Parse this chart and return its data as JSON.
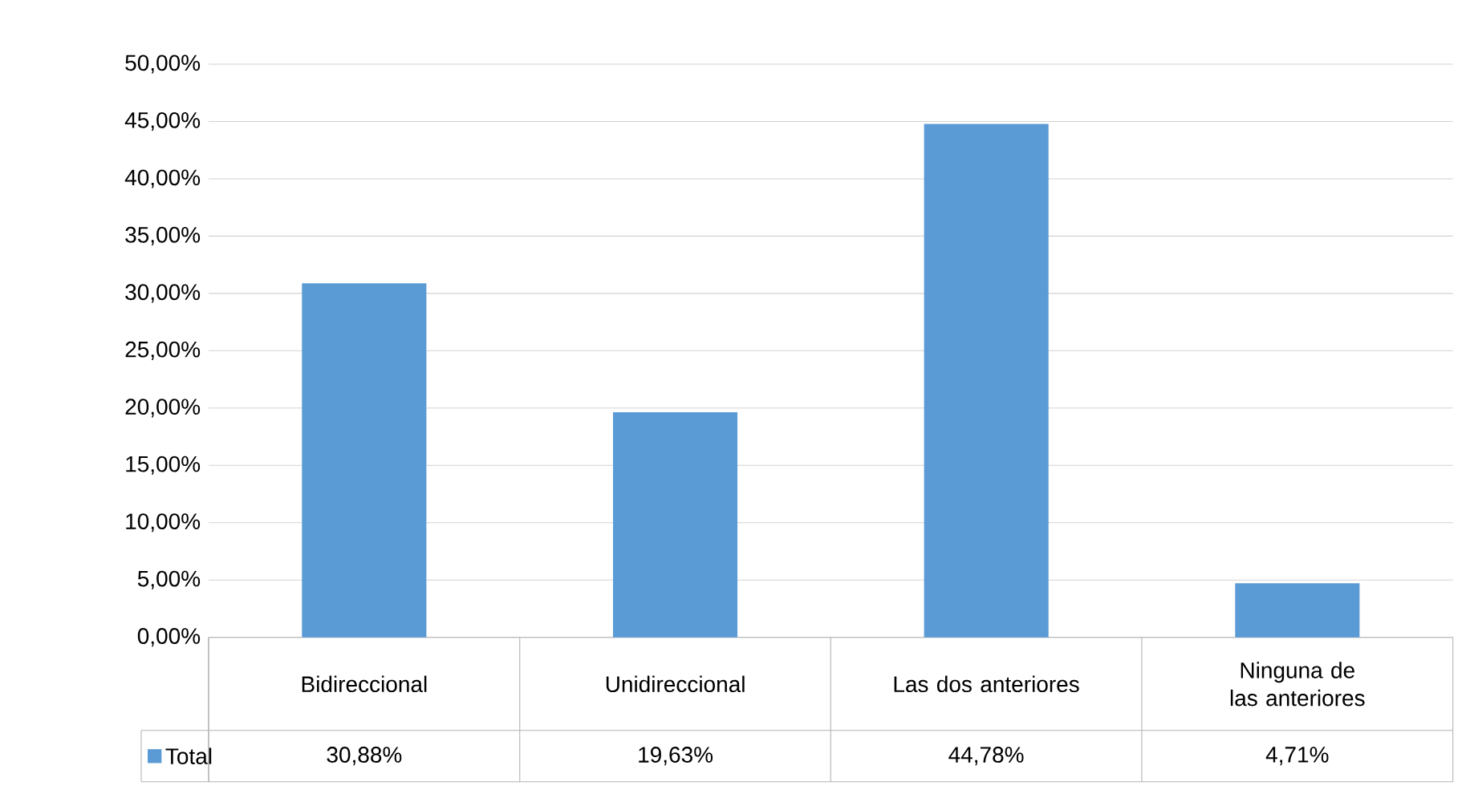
{
  "chart_data": {
    "type": "bar",
    "categories": [
      "Bidireccional",
      "Unidireccional",
      "Las dos anteriores",
      "Ninguna de las anteriores"
    ],
    "series": [
      {
        "name": "Total",
        "color": "#5b9bd5",
        "values": [
          30.88,
          19.63,
          44.78,
          4.71
        ],
        "value_labels": [
          "30,88%",
          "19,63%",
          "44,78%",
          "4,71%"
        ]
      }
    ],
    "ylim": [
      0,
      50
    ],
    "yticks": [
      {
        "value": 0,
        "label": "0,00%"
      },
      {
        "value": 5,
        "label": "5,00%"
      },
      {
        "value": 10,
        "label": "10,00%"
      },
      {
        "value": 15,
        "label": "15,00%"
      },
      {
        "value": 20,
        "label": "20,00%"
      },
      {
        "value": 25,
        "label": "25,00%"
      },
      {
        "value": 30,
        "label": "30,00%"
      },
      {
        "value": 35,
        "label": "35,00%"
      },
      {
        "value": 40,
        "label": "40,00%"
      },
      {
        "value": 45,
        "label": "45,00%"
      },
      {
        "value": 50,
        "label": "50,00%"
      }
    ],
    "grid": true,
    "legend": "bottom left"
  }
}
